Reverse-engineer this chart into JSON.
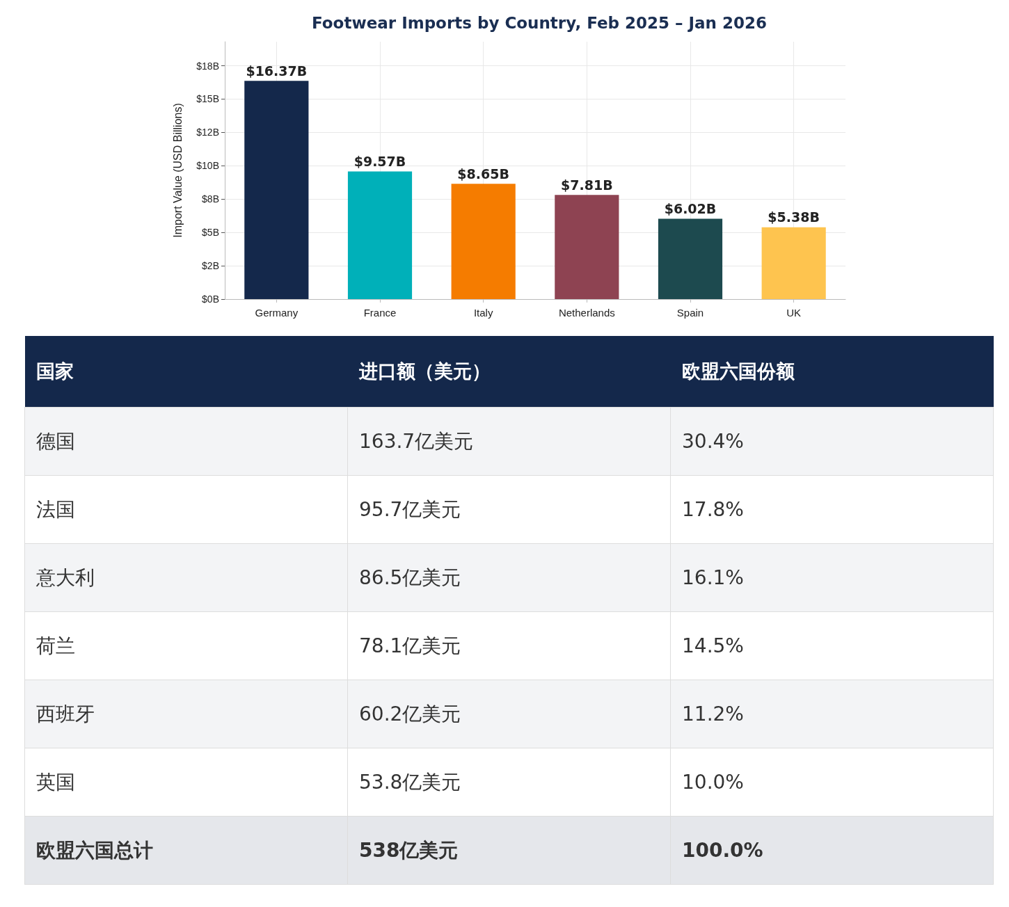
{
  "chart_data": [
    {
      "type": "bar",
      "title": "Footwear Imports by Country, Feb 2025 – Jan 2026",
      "ylabel": "Import Value (USD Billions)",
      "categories": [
        "Germany",
        "France",
        "Italy",
        "Netherlands",
        "Spain",
        "UK"
      ],
      "values": [
        16.37,
        9.57,
        8.65,
        7.81,
        6.02,
        5.38
      ],
      "colors": [
        "#14284b",
        "#00b0b9",
        "#f57c00",
        "#8e4352",
        "#1d4a4f",
        "#fec44f"
      ],
      "value_labels": [
        "$16.37B",
        "$9.57B",
        "$8.65B",
        "$7.81B",
        "$6.02B",
        "$5.38B"
      ],
      "ylim": [
        0,
        19.3
      ],
      "yticks": [
        {
          "value": 0,
          "label": "$0B"
        },
        {
          "value": 2.5,
          "label": "$2B"
        },
        {
          "value": 5,
          "label": "$5B"
        },
        {
          "value": 7.5,
          "label": "$8B"
        },
        {
          "value": 10,
          "label": "$10B"
        },
        {
          "value": 12.5,
          "label": "$12B"
        },
        {
          "value": 15,
          "label": "$15B"
        },
        {
          "value": 17.5,
          "label": "$18B"
        }
      ],
      "grid": true
    },
    {
      "type": "other",
      "categories": [
        "国家",
        "进口额（美元）",
        "欧盟六国份额"
      ],
      "annotations": [
        "德国",
        "163.7亿美元",
        "30.4%",
        "法国",
        "95.7亿美元",
        "17.8%",
        "意大利",
        "86.5亿美元",
        "16.1%",
        "荷兰",
        "78.1亿美元",
        "14.5%",
        "西班牙",
        "60.2亿美元",
        "11.2%",
        "英国",
        "53.8亿美元",
        "10.0%",
        "欧盟六国总计",
        "538亿美元",
        "100.0%"
      ]
    }
  ]
}
